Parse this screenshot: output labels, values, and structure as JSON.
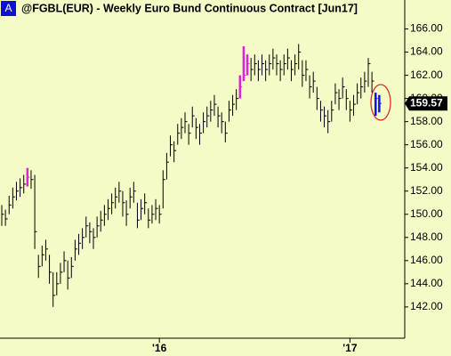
{
  "chart_data": {
    "type": "ohlc",
    "badge": "A",
    "title": "@FGBL(EUR) - Weekly  Euro Bund Continuous Contract [Jun17]",
    "categories": [
      null,
      null,
      null,
      null,
      null,
      null,
      null,
      null,
      null,
      null,
      null,
      null,
      null,
      null,
      null,
      null,
      null,
      null,
      null,
      null,
      null,
      null,
      null,
      null,
      null,
      null,
      null,
      null,
      null,
      null,
      null,
      null,
      null,
      null,
      null,
      null,
      null,
      null,
      null,
      null,
      null,
      null,
      null,
      "'16",
      null,
      null,
      null,
      null,
      null,
      null,
      null,
      null,
      null,
      null,
      null,
      null,
      null,
      null,
      null,
      null,
      null,
      null,
      null,
      null,
      null,
      null,
      null,
      null,
      null,
      null,
      null,
      null,
      null,
      null,
      null,
      null,
      null,
      null,
      null,
      null,
      null,
      null,
      null,
      null,
      null,
      null,
      null,
      null,
      null,
      null,
      null,
      null,
      null,
      null,
      null,
      "'17",
      null,
      null,
      null,
      null,
      null,
      null,
      null,
      null
    ],
    "high": [
      150.8,
      150.4,
      151.6,
      152.3,
      152.8,
      153.1,
      153.4,
      154.0,
      153.8,
      153.4,
      146.5,
      147.3,
      147.8,
      146.5,
      145.0,
      145.0,
      145.8,
      146.8,
      146.0,
      146.3,
      147.8,
      148.3,
      148.8,
      149.8,
      149.3,
      148.8,
      149.8,
      150.3,
      150.8,
      151.3,
      151.8,
      152.3,
      152.8,
      152.0,
      151.2,
      152.3,
      152.8,
      151.0,
      151.3,
      151.8,
      150.5,
      150.8,
      151.3,
      150.8,
      153.8,
      155.3,
      156.8,
      156.3,
      157.8,
      158.3,
      158.8,
      157.8,
      159.3,
      158.3,
      157.8,
      158.8,
      159.3,
      159.8,
      160.3,
      159.3,
      158.8,
      158.0,
      159.8,
      160.3,
      160.8,
      162.0,
      164.5,
      163.8,
      163.5,
      163.8,
      163.3,
      163.8,
      163.3,
      163.8,
      164.3,
      163.8,
      163.3,
      163.8,
      164.3,
      163.3,
      163.8,
      164.7,
      163.3,
      163.3,
      162.0,
      162.3,
      161.0,
      159.8,
      159.3,
      159.0,
      159.8,
      161.3,
      160.8,
      161.8,
      160.8,
      159.8,
      160.3,
      161.3,
      161.8,
      162.3,
      163.5,
      162.3,
      160.5,
      160.3
    ],
    "low": [
      149.0,
      149.0,
      150.0,
      150.5,
      151.2,
      151.5,
      151.8,
      152.4,
      152.2,
      147.0,
      144.5,
      145.5,
      146.0,
      144.0,
      142.0,
      143.0,
      144.0,
      145.0,
      143.5,
      144.5,
      146.0,
      146.5,
      147.0,
      148.0,
      147.5,
      147.0,
      148.0,
      148.5,
      149.0,
      149.5,
      150.0,
      150.5,
      151.0,
      149.8,
      149.0,
      150.5,
      151.0,
      148.8,
      149.5,
      150.0,
      148.8,
      149.2,
      149.5,
      149.2,
      150.5,
      153.0,
      155.0,
      154.5,
      156.0,
      156.5,
      157.0,
      156.0,
      157.5,
      156.5,
      156.0,
      157.0,
      157.5,
      158.0,
      158.5,
      157.5,
      157.0,
      156.2,
      158.0,
      158.5,
      159.0,
      160.0,
      161.5,
      162.0,
      161.5,
      162.0,
      161.5,
      162.0,
      161.5,
      162.0,
      162.5,
      162.0,
      161.5,
      162.0,
      162.5,
      161.5,
      162.0,
      162.5,
      161.0,
      161.5,
      160.0,
      160.5,
      159.0,
      158.0,
      157.5,
      157.0,
      158.0,
      159.5,
      159.0,
      160.0,
      159.0,
      158.0,
      158.5,
      159.5,
      160.0,
      160.5,
      161.0,
      160.5,
      158.5,
      158.8
    ],
    "close": [
      150.0,
      149.6,
      150.8,
      151.5,
      152.0,
      152.3,
      152.6,
      153.2,
      153.0,
      148.5,
      145.5,
      146.5,
      147.0,
      145.0,
      143.0,
      144.0,
      145.0,
      146.0,
      144.5,
      145.5,
      147.0,
      147.5,
      148.0,
      149.0,
      148.5,
      148.0,
      149.0,
      149.5,
      150.0,
      150.5,
      151.0,
      151.5,
      152.0,
      151.0,
      150.0,
      151.5,
      152.0,
      149.5,
      150.5,
      151.0,
      149.5,
      150.0,
      150.5,
      150.0,
      153.0,
      154.5,
      156.0,
      155.5,
      157.0,
      157.5,
      158.0,
      157.0,
      158.5,
      157.5,
      157.0,
      158.0,
      158.5,
      159.0,
      159.5,
      158.5,
      158.0,
      157.0,
      159.0,
      159.5,
      160.0,
      161.0,
      162.0,
      163.0,
      162.5,
      163.0,
      162.5,
      163.0,
      162.5,
      163.0,
      163.5,
      163.0,
      162.5,
      163.0,
      163.5,
      162.5,
      163.0,
      164.0,
      162.0,
      162.5,
      161.0,
      161.5,
      160.0,
      159.0,
      158.5,
      158.0,
      159.0,
      160.5,
      160.0,
      161.0,
      160.0,
      159.0,
      159.5,
      160.5,
      161.0,
      161.5,
      163.0,
      161.5,
      160.0,
      159.57
    ],
    "color": "#000000",
    "highlight_color": "#e020e0",
    "highlight_bars": [
      7,
      65,
      66,
      67
    ],
    "last_color": "#1010ff",
    "last_bars": [
      102,
      103
    ],
    "ylim": [
      139.3,
      168.5
    ],
    "yticks": [
      {
        "value": 142,
        "label": "142.00"
      },
      {
        "value": 144,
        "label": "144.00"
      },
      {
        "value": 146,
        "label": "146.00"
      },
      {
        "value": 148,
        "label": "148.00"
      },
      {
        "value": 150,
        "label": "150.00"
      },
      {
        "value": 152,
        "label": "152.00"
      },
      {
        "value": 154,
        "label": "154.00"
      },
      {
        "value": 156,
        "label": "156.00"
      },
      {
        "value": 158,
        "label": "158.00"
      },
      {
        "value": 160,
        "label": "160.00"
      },
      {
        "value": 162,
        "label": "162.00"
      },
      {
        "value": 164,
        "label": "164.00"
      },
      {
        "value": 166,
        "label": "166.00"
      }
    ]
  }
}
